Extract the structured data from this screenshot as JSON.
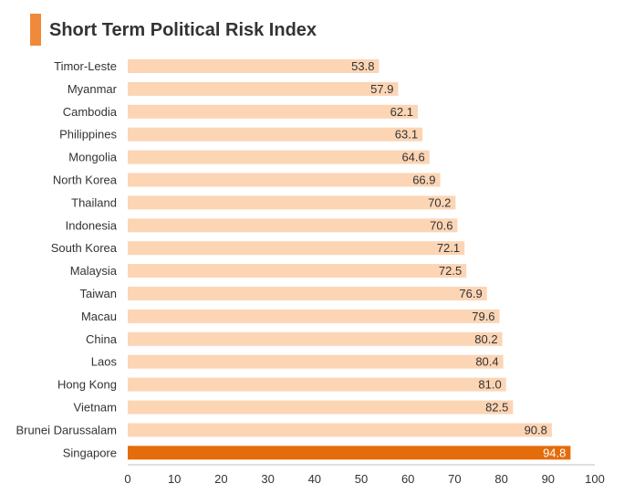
{
  "title": "Short Term Political Risk Index",
  "colors": {
    "accent": "#f08a3a",
    "bar": "#fcd5b5",
    "highlight": "#e46c0a",
    "text": "#333333"
  },
  "chart_data": {
    "type": "bar",
    "orientation": "horizontal",
    "title": "Short Term Political Risk Index",
    "xlabel": "",
    "ylabel": "",
    "xlim": [
      0,
      100
    ],
    "x_ticks": [
      0,
      10,
      20,
      30,
      40,
      50,
      60,
      70,
      80,
      90,
      100
    ],
    "grid": false,
    "highlight_category": "Singapore",
    "categories": [
      "Timor-Leste",
      "Myanmar",
      "Cambodia",
      "Philippines",
      "Mongolia",
      "North Korea",
      "Thailand",
      "Indonesia",
      "South Korea",
      "Malaysia",
      "Taiwan",
      "Macau",
      "China",
      "Laos",
      "Hong Kong",
      "Vietnam",
      "Brunei Darussalam",
      "Singapore"
    ],
    "values": [
      53.8,
      57.9,
      62.1,
      63.1,
      64.6,
      66.9,
      70.2,
      70.6,
      72.1,
      72.5,
      76.9,
      79.6,
      80.2,
      80.4,
      81.0,
      82.5,
      90.8,
      94.8
    ],
    "value_labels": [
      "53.8",
      "57.9",
      "62.1",
      "63.1",
      "64.6",
      "66.9",
      "70.2",
      "70.6",
      "72.1",
      "72.5",
      "76.9",
      "79.6",
      "80.2",
      "80.4",
      "81.0",
      "82.5",
      "90.8",
      "94.8"
    ]
  }
}
